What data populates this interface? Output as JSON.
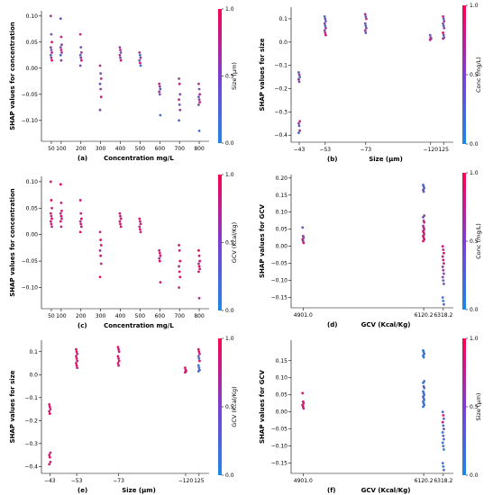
{
  "colors": {
    "low": "#1e88e5",
    "high": "#ff0052"
  },
  "chart_data": [
    {
      "type": "scatter",
      "panel_label": "(a)",
      "xlabel": "Concentration mg/L",
      "ylabel": "SHAP values for concentration",
      "colorbar_label": "Size (µm)",
      "colorbar_ticks": [
        "0.0",
        "0.5",
        "1.0"
      ],
      "x_scale": "linear",
      "xlim": [
        0,
        850
      ],
      "ylim": [
        -0.14,
        0.11
      ],
      "x_ticks": [
        50,
        100,
        200,
        300,
        400,
        500,
        600,
        700,
        800
      ],
      "x_tick_labels": [
        "50",
        "100",
        "200",
        "300",
        "400",
        "500",
        "600",
        "700",
        "800"
      ],
      "y_ticks": [
        -0.1,
        -0.05,
        0.0,
        0.05,
        0.1
      ],
      "y_tick_labels": [
        "−0.10",
        "−0.05",
        "0.00",
        "0.05",
        "0.10"
      ],
      "groups": [
        {
          "x": 50,
          "y": [
            0.1,
            0.065,
            0.05,
            0.04,
            0.035,
            0.03,
            0.025,
            0.02,
            0.015
          ],
          "c": [
            0.6,
            0.3,
            0.8,
            0.5,
            0.4,
            0.7,
            0.2,
            0.6,
            0.9
          ]
        },
        {
          "x": 100,
          "y": [
            0.095,
            0.06,
            0.045,
            0.04,
            0.035,
            0.03,
            0.025,
            0.015
          ],
          "c": [
            0.3,
            0.7,
            0.5,
            0.4,
            0.8,
            0.6,
            0.2,
            0.5
          ]
        },
        {
          "x": 200,
          "y": [
            0.065,
            0.04,
            0.03,
            0.025,
            0.02,
            0.015,
            0.005
          ],
          "c": [
            0.7,
            0.4,
            0.6,
            0.3,
            0.5,
            0.8,
            0.4
          ]
        },
        {
          "x": 300,
          "y": [
            0.005,
            -0.01,
            -0.02,
            -0.03,
            -0.04,
            -0.055,
            -0.08
          ],
          "c": [
            0.6,
            0.4,
            0.7,
            0.3,
            0.5,
            0.8,
            0.4
          ]
        },
        {
          "x": 400,
          "y": [
            0.04,
            0.035,
            0.03,
            0.025,
            0.02,
            0.015
          ],
          "c": [
            0.5,
            0.7,
            0.3,
            0.6,
            0.4,
            0.8
          ]
        },
        {
          "x": 500,
          "y": [
            0.03,
            0.025,
            0.02,
            0.015,
            0.01,
            0.005
          ],
          "c": [
            0.6,
            0.2,
            0.5,
            0.3,
            0.8,
            0.1
          ]
        },
        {
          "x": 600,
          "y": [
            -0.03,
            -0.035,
            -0.04,
            -0.045,
            -0.05,
            -0.09
          ],
          "c": [
            0.7,
            0.5,
            0.3,
            0.6,
            0.4,
            0.2
          ]
        },
        {
          "x": 700,
          "y": [
            -0.02,
            -0.03,
            -0.05,
            -0.06,
            -0.07,
            -0.08,
            -0.1
          ],
          "c": [
            0.5,
            0.7,
            0.4,
            0.6,
            0.3,
            0.5,
            0.2
          ]
        },
        {
          "x": 800,
          "y": [
            -0.03,
            -0.04,
            -0.05,
            -0.055,
            -0.06,
            -0.065,
            -0.07,
            -0.12
          ],
          "c": [
            0.6,
            0.4,
            0.7,
            0.3,
            0.5,
            0.8,
            0.4,
            0.2
          ]
        }
      ]
    },
    {
      "type": "scatter",
      "panel_label": "(b)",
      "xlabel": "Size (µm)",
      "ylabel": "SHAP values for size",
      "colorbar_label": "Conc (mg/L)",
      "colorbar_ticks": [
        "0.0",
        "0.5",
        "1.0"
      ],
      "x_scale": "linear",
      "xlim": [
        0,
        10
      ],
      "ylim": [
        -0.43,
        0.15
      ],
      "x_ticks": [
        0.5,
        2.1,
        4.6,
        8.6,
        9.4
      ],
      "x_tick_labels": [
        "−43",
        "−53",
        "−73",
        "−120",
        "125"
      ],
      "y_ticks": [
        -0.4,
        -0.3,
        -0.2,
        -0.1,
        0.0,
        0.1
      ],
      "y_tick_labels": [
        "−0.4",
        "−0.3",
        "−0.2",
        "−0.1",
        "0.0",
        "0.1"
      ],
      "groups": [
        {
          "x": 0.5,
          "y": [
            -0.13,
            -0.14,
            -0.15,
            -0.16,
            -0.17,
            -0.34,
            -0.35,
            -0.36,
            -0.38,
            -0.39
          ],
          "c": [
            0.3,
            0.5,
            0.2,
            0.6,
            0.4,
            0.7,
            0.5,
            0.3,
            0.6,
            0.2
          ]
        },
        {
          "x": 2.1,
          "y": [
            0.11,
            0.1,
            0.09,
            0.08,
            0.07,
            0.06,
            0.05,
            0.04,
            0.03
          ],
          "c": [
            0.2,
            0.4,
            0.3,
            0.5,
            0.2,
            0.6,
            0.4,
            0.7,
            0.8
          ]
        },
        {
          "x": 4.6,
          "y": [
            0.12,
            0.11,
            0.1,
            0.08,
            0.07,
            0.06,
            0.05,
            0.04
          ],
          "c": [
            0.6,
            0.3,
            0.7,
            0.4,
            0.2,
            0.5,
            0.6,
            0.3
          ]
        },
        {
          "x": 8.6,
          "y": [
            0.03,
            0.02,
            0.015,
            0.01
          ],
          "c": [
            0.3,
            0.6,
            0.4,
            0.7
          ]
        },
        {
          "x": 9.4,
          "y": [
            0.11,
            0.1,
            0.09,
            0.08,
            0.07,
            0.06,
            0.04,
            0.03,
            0.02,
            0.015
          ],
          "c": [
            0.7,
            0.2,
            0.6,
            0.4,
            0.3,
            0.5,
            0.8,
            0.4,
            0.2,
            0.6
          ]
        }
      ]
    },
    {
      "type": "scatter",
      "panel_label": "(c)",
      "xlabel": "Concentration mg/L",
      "ylabel": "SHAP values for concentration",
      "colorbar_label": "GCV (Kcal/Kg)",
      "colorbar_ticks": [
        "0.0",
        "0.5",
        "1.0"
      ],
      "x_scale": "linear",
      "xlim": [
        0,
        850
      ],
      "ylim": [
        -0.14,
        0.11
      ],
      "x_ticks": [
        50,
        100,
        200,
        300,
        400,
        500,
        600,
        700,
        800
      ],
      "x_tick_labels": [
        "50",
        "100",
        "200",
        "300",
        "400",
        "500",
        "600",
        "700",
        "800"
      ],
      "y_ticks": [
        -0.1,
        -0.05,
        0.0,
        0.05,
        0.1
      ],
      "y_tick_labels": [
        "−0.10",
        "−0.05",
        "0.00",
        "0.05",
        "0.10"
      ],
      "groups": [
        {
          "x": 50,
          "y": [
            0.1,
            0.065,
            0.05,
            0.04,
            0.035,
            0.03,
            0.025,
            0.02,
            0.015
          ],
          "c": [
            0.8,
            0.9,
            0.7,
            0.8,
            0.6,
            0.9,
            0.7,
            0.8,
            0.6
          ]
        },
        {
          "x": 100,
          "y": [
            0.095,
            0.06,
            0.045,
            0.04,
            0.035,
            0.03,
            0.025,
            0.015
          ],
          "c": [
            0.9,
            0.7,
            0.8,
            0.6,
            0.9,
            0.7,
            0.8,
            0.6
          ]
        },
        {
          "x": 200,
          "y": [
            0.065,
            0.04,
            0.03,
            0.025,
            0.02,
            0.015,
            0.005
          ],
          "c": [
            0.8,
            0.7,
            0.9,
            0.6,
            0.8,
            0.7,
            0.9
          ]
        },
        {
          "x": 300,
          "y": [
            0.005,
            -0.01,
            -0.02,
            -0.03,
            -0.04,
            -0.055,
            -0.08
          ],
          "c": [
            0.7,
            0.9,
            0.8,
            0.6,
            0.8,
            0.7,
            0.9
          ]
        },
        {
          "x": 400,
          "y": [
            0.04,
            0.035,
            0.03,
            0.025,
            0.02,
            0.015
          ],
          "c": [
            0.8,
            0.6,
            0.9,
            0.7,
            0.8,
            0.9
          ]
        },
        {
          "x": 500,
          "y": [
            0.03,
            0.025,
            0.02,
            0.015,
            0.01,
            0.005
          ],
          "c": [
            0.9,
            0.7,
            0.8,
            0.6,
            0.9,
            0.7
          ]
        },
        {
          "x": 600,
          "y": [
            -0.03,
            -0.035,
            -0.04,
            -0.045,
            -0.05,
            -0.09
          ],
          "c": [
            0.7,
            0.9,
            0.8,
            0.6,
            0.9,
            0.8
          ]
        },
        {
          "x": 700,
          "y": [
            -0.02,
            -0.03,
            -0.05,
            -0.06,
            -0.07,
            -0.08,
            -0.1
          ],
          "c": [
            0.8,
            0.7,
            0.9,
            0.6,
            0.8,
            0.9,
            0.7
          ]
        },
        {
          "x": 800,
          "y": [
            -0.03,
            -0.04,
            -0.05,
            -0.055,
            -0.06,
            -0.065,
            -0.07,
            -0.12
          ],
          "c": [
            0.9,
            0.7,
            0.8,
            0.6,
            0.9,
            0.7,
            0.8,
            0.6
          ]
        }
      ]
    },
    {
      "type": "scatter",
      "panel_label": "(d)",
      "xlabel": "GCV (Kcal/Kg)",
      "ylabel": "SHAP values for GCV",
      "colorbar_label": "Conc (mg/L)",
      "colorbar_ticks": [
        "0.0",
        "0.5",
        "1.0"
      ],
      "x_scale": "linear",
      "xlim": [
        4780,
        6420
      ],
      "ylim": [
        -0.18,
        0.21
      ],
      "x_ticks": [
        4901.0,
        6120.2,
        6318.2
      ],
      "x_tick_labels": [
        "4901.0",
        "6120.2",
        "6318.2"
      ],
      "y_ticks": [
        -0.15,
        -0.1,
        -0.05,
        0.0,
        0.05,
        0.1,
        0.15,
        0.2
      ],
      "y_tick_labels": [
        "−0.15",
        "−0.10",
        "−0.05",
        "0.00",
        "0.05",
        "0.10",
        "0.15",
        "0.20"
      ],
      "groups": [
        {
          "x": 4901.0,
          "y": [
            0.055,
            0.03,
            0.025,
            0.02,
            0.015,
            0.01
          ],
          "c": [
            0.3,
            0.6,
            0.4,
            0.7,
            0.5,
            0.8
          ]
        },
        {
          "x": 6120.2,
          "y": [
            0.18,
            0.175,
            0.17,
            0.165,
            0.16,
            0.09,
            0.085,
            0.075,
            0.07,
            0.06,
            0.055,
            0.05,
            0.045,
            0.04,
            0.035,
            0.03,
            0.025,
            0.02,
            0.015
          ],
          "c": [
            0.2,
            0.3,
            0.2,
            0.4,
            0.3,
            0.5,
            0.4,
            0.6,
            0.7,
            0.5,
            0.8,
            0.6,
            0.7,
            0.9,
            0.6,
            0.8,
            0.7,
            0.9,
            0.8
          ]
        },
        {
          "x": 6318.2,
          "y": [
            0.0,
            -0.01,
            -0.02,
            -0.03,
            -0.04,
            -0.05,
            -0.06,
            -0.07,
            -0.08,
            -0.09,
            -0.1,
            -0.11,
            -0.15,
            -0.16,
            -0.17
          ],
          "c": [
            0.8,
            0.7,
            0.9,
            0.6,
            0.8,
            0.7,
            0.5,
            0.6,
            0.4,
            0.5,
            0.3,
            0.4,
            0.2,
            0.1,
            0.2
          ]
        }
      ]
    },
    {
      "type": "scatter",
      "panel_label": "(e)",
      "xlabel": "Size (µm)",
      "ylabel": "SHAP values for size",
      "colorbar_label": "GCV (Kcal/Kg)",
      "colorbar_ticks": [
        "0.0",
        "0.5",
        "1.0"
      ],
      "x_scale": "linear",
      "xlim": [
        0,
        10
      ],
      "ylim": [
        -0.43,
        0.15
      ],
      "x_ticks": [
        0.5,
        2.1,
        4.6,
        8.6,
        9.4
      ],
      "x_tick_labels": [
        "−43",
        "−53",
        "−73",
        "−120",
        "125"
      ],
      "y_ticks": [
        -0.4,
        -0.3,
        -0.2,
        -0.1,
        0.0,
        0.1
      ],
      "y_tick_labels": [
        "−0.4",
        "−0.3",
        "−0.2",
        "−0.1",
        "0.0",
        "0.1"
      ],
      "groups": [
        {
          "x": 0.5,
          "y": [
            -0.13,
            -0.14,
            -0.15,
            -0.16,
            -0.17,
            -0.34,
            -0.35,
            -0.36,
            -0.38,
            -0.39
          ],
          "c": [
            0.8,
            0.9,
            0.7,
            0.8,
            0.9,
            0.7,
            0.8,
            0.9,
            0.7,
            0.8
          ]
        },
        {
          "x": 2.1,
          "y": [
            0.11,
            0.1,
            0.09,
            0.08,
            0.07,
            0.06,
            0.05,
            0.04,
            0.03
          ],
          "c": [
            0.8,
            0.9,
            0.7,
            0.8,
            0.9,
            0.7,
            0.8,
            0.9,
            0.7
          ]
        },
        {
          "x": 4.6,
          "y": [
            0.12,
            0.11,
            0.1,
            0.08,
            0.07,
            0.06,
            0.05,
            0.04
          ],
          "c": [
            0.9,
            0.7,
            0.8,
            0.9,
            0.7,
            0.8,
            0.9,
            0.7
          ]
        },
        {
          "x": 8.6,
          "y": [
            0.03,
            0.02,
            0.015,
            0.01
          ],
          "c": [
            0.8,
            0.9,
            0.7,
            0.8
          ]
        },
        {
          "x": 9.4,
          "y": [
            0.11,
            0.1,
            0.09,
            0.08,
            0.07,
            0.06,
            0.04,
            0.03,
            0.02,
            0.015
          ],
          "c": [
            0.8,
            0.9,
            0.7,
            0.3,
            0.2,
            0.8,
            0.1,
            0.2,
            0.3,
            0.1
          ]
        }
      ]
    },
    {
      "type": "scatter",
      "panel_label": "(f)",
      "xlabel": "GCV (Kcal/Kg)",
      "ylabel": "SHAP values for GCV",
      "colorbar_label": "Size (µm)",
      "colorbar_ticks": [
        "0.0",
        "0.5",
        "1.0"
      ],
      "x_scale": "linear",
      "xlim": [
        4780,
        6420
      ],
      "ylim": [
        -0.18,
        0.21
      ],
      "x_ticks": [
        4901.0,
        6120.2,
        6318.2
      ],
      "x_tick_labels": [
        "4901.0",
        "6120.2",
        "6318.2"
      ],
      "y_ticks": [
        -0.15,
        -0.1,
        -0.05,
        0.0,
        0.05,
        0.1,
        0.15
      ],
      "y_tick_labels": [
        "−0.15",
        "−0.10",
        "−0.05",
        "0.00",
        "0.05",
        "0.10",
        "0.15"
      ],
      "groups": [
        {
          "x": 4901.0,
          "y": [
            0.055,
            0.03,
            0.025,
            0.02,
            0.015,
            0.01
          ],
          "c": [
            0.8,
            0.9,
            0.7,
            0.8,
            0.9,
            0.7
          ]
        },
        {
          "x": 6120.2,
          "y": [
            0.18,
            0.175,
            0.17,
            0.165,
            0.16,
            0.09,
            0.085,
            0.075,
            0.07,
            0.06,
            0.055,
            0.05,
            0.045,
            0.04,
            0.035,
            0.03,
            0.025,
            0.02,
            0.015
          ],
          "c": [
            0.1,
            0.1,
            0.2,
            0.1,
            0.1,
            0.2,
            0.1,
            0.3,
            0.2,
            0.1,
            0.2,
            0.1,
            0.3,
            0.2,
            0.1,
            0.2,
            0.1,
            0.2,
            0.1
          ]
        },
        {
          "x": 6318.2,
          "y": [
            0.0,
            -0.01,
            -0.02,
            -0.03,
            -0.04,
            -0.05,
            -0.06,
            -0.07,
            -0.08,
            -0.09,
            -0.1,
            -0.11,
            -0.15,
            -0.16,
            -0.17
          ],
          "c": [
            0.2,
            0.8,
            0.3,
            0.7,
            0.2,
            0.4,
            0.1,
            0.3,
            0.2,
            0.1,
            0.2,
            0.1,
            0.2,
            0.1,
            0.2
          ]
        }
      ]
    }
  ]
}
